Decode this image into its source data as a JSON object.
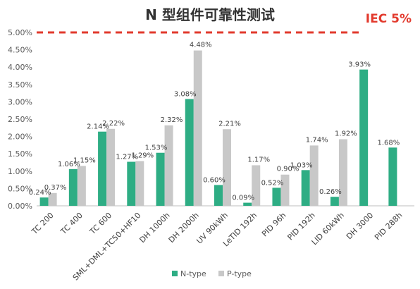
{
  "chart_data": {
    "type": "bar",
    "title": "N 型组件可靠性测试",
    "categories": [
      "TC 200",
      "TC 400",
      "TC 600",
      "SML+DML+TC50+HF10",
      "DH 1000h",
      "DH 2000h",
      "UV 90kWh",
      "LeTID 192h",
      "PID 96h",
      "PID 192h",
      "LID 60kWh",
      "DH 3000",
      "PID 288h"
    ],
    "series": [
      {
        "name": "N-type",
        "color": "#2ead84",
        "values": [
          0.24,
          1.06,
          2.14,
          1.27,
          1.53,
          3.08,
          0.6,
          0.09,
          0.52,
          1.03,
          0.26,
          3.93,
          1.68
        ],
        "labels": [
          "0.24%",
          "1.06%",
          "2.14%",
          "1.27%",
          "1.53%",
          "3.08%",
          "0.60%",
          "0.09%",
          "0.52%",
          "1.03%",
          "0.26%",
          "3.93%",
          "1.68%"
        ]
      },
      {
        "name": "P-type",
        "color": "#c8c8c8",
        "values": [
          0.37,
          1.15,
          2.22,
          1.29,
          2.32,
          4.48,
          2.21,
          1.17,
          0.9,
          1.74,
          1.92,
          null,
          null
        ],
        "labels": [
          "0.37%",
          "1.15%",
          "2.22%",
          "1.29%",
          "2.32%",
          "4.48%",
          "2.21%",
          "1.17%",
          "0.90%",
          "1.74%",
          "1.92%",
          null,
          null
        ]
      }
    ],
    "yticks": [
      "0.00%",
      "0.50%",
      "1.00%",
      "1.50%",
      "2.00%",
      "2.50%",
      "3.00%",
      "3.50%",
      "4.00%",
      "4.50%",
      "5.00%"
    ],
    "ylim": [
      0,
      5.0
    ],
    "reference_line": {
      "value": 5.0,
      "label": "IEC 5%",
      "color": "#e23a2d",
      "style": "dashed"
    },
    "legend_position": "bottom",
    "grid": false
  }
}
